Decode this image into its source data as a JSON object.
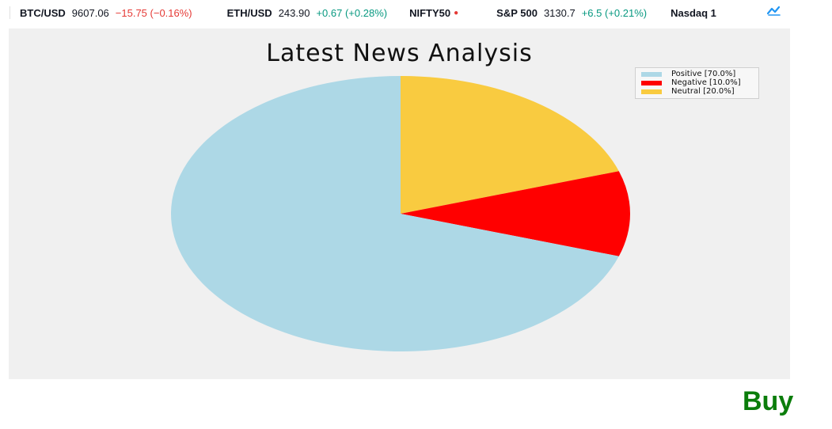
{
  "ticker": [
    {
      "symbol": "BTC/USD",
      "price": "9607.06",
      "change": "−15.75 (−0.16%)",
      "direction": "down"
    },
    {
      "symbol": "ETH/USD",
      "price": "243.90",
      "change": "+0.67 (+0.28%)",
      "direction": "up"
    },
    {
      "symbol": "NIFTY50",
      "price": "",
      "change": "",
      "direction": "down"
    },
    {
      "symbol": "S&P 500",
      "price": "3130.7",
      "change": "+6.5 (+0.21%)",
      "direction": "up"
    },
    {
      "symbol": "Nasdaq 1",
      "price": "",
      "change": "",
      "direction": "up"
    }
  ],
  "chart_data": {
    "type": "pie",
    "title": "Latest News Analysis",
    "legend_position": "top-right",
    "slices": [
      {
        "label": "Positive [70.0%]",
        "value": 70.0,
        "color": "#add8e6"
      },
      {
        "label": "Negative [10.0%]",
        "value": 10.0,
        "color": "#ff0000"
      },
      {
        "label": "Neutral [20.0%]",
        "value": 20.0,
        "color": "#f9cb40"
      }
    ],
    "start_angle_deg": 90,
    "direction": "clockwise-from-neutral"
  },
  "action": {
    "label": "Buy",
    "color": "#0b7d0b"
  }
}
